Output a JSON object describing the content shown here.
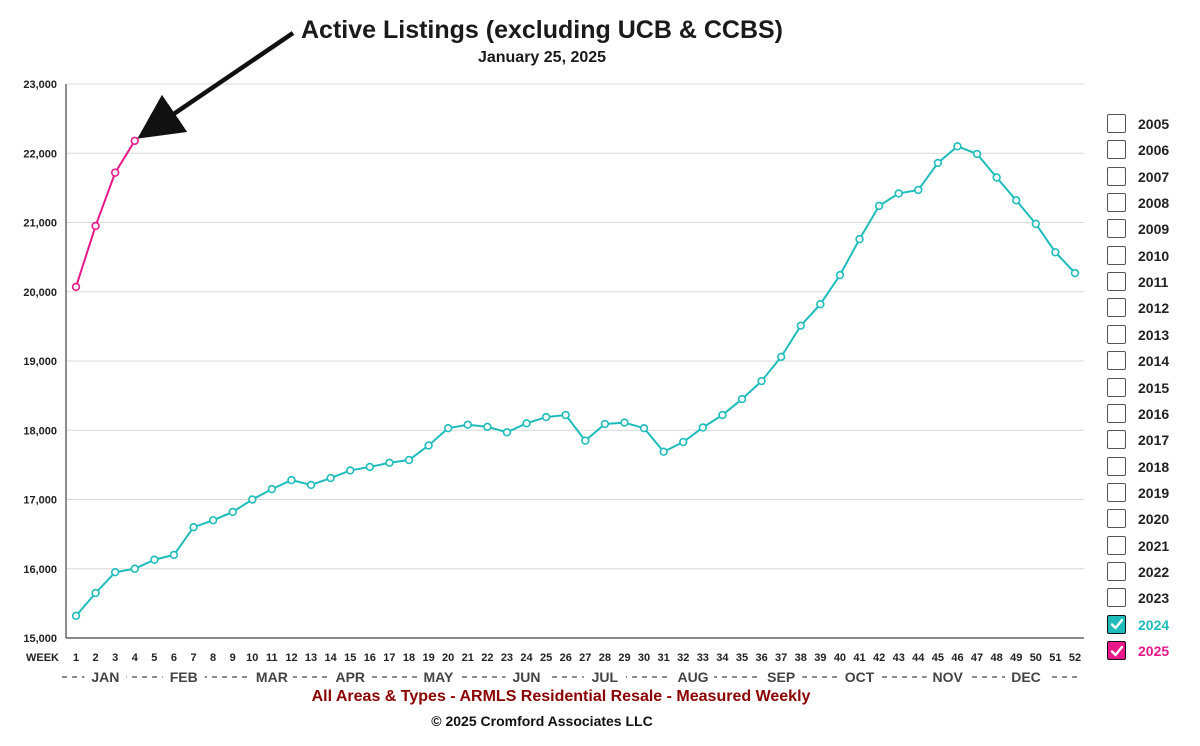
{
  "title": "Active Listings (excluding UCB & CCBS)",
  "subtitle": "January 25, 2025",
  "footer_subtitle": "All Areas & Types - ARMLS Residential Resale - Measured Weekly",
  "copyright": "© 2025 Cromford Associates LLC",
  "colors": {
    "s2024": "#1fbcbc",
    "s2025": "#e8178a",
    "grid": "#d8d8d8",
    "axis": "#444444"
  },
  "year_legend": [
    {
      "label": "2005",
      "checked": false
    },
    {
      "label": "2006",
      "checked": false
    },
    {
      "label": "2007",
      "checked": false
    },
    {
      "label": "2008",
      "checked": false
    },
    {
      "label": "2009",
      "checked": false
    },
    {
      "label": "2010",
      "checked": false
    },
    {
      "label": "2011",
      "checked": false
    },
    {
      "label": "2012",
      "checked": false
    },
    {
      "label": "2013",
      "checked": false
    },
    {
      "label": "2014",
      "checked": false
    },
    {
      "label": "2015",
      "checked": false
    },
    {
      "label": "2016",
      "checked": false
    },
    {
      "label": "2017",
      "checked": false
    },
    {
      "label": "2018",
      "checked": false
    },
    {
      "label": "2019",
      "checked": false
    },
    {
      "label": "2020",
      "checked": false
    },
    {
      "label": "2021",
      "checked": false
    },
    {
      "label": "2022",
      "checked": false
    },
    {
      "label": "2023",
      "checked": false
    },
    {
      "label": "2024",
      "checked": true,
      "color": "#1fbcbc"
    },
    {
      "label": "2025",
      "checked": true,
      "color": "#e8178a"
    }
  ],
  "chart_data": {
    "type": "line",
    "title": "Active Listings (excluding UCB & CCBS)",
    "subtitle": "January 25, 2025",
    "xlabel": "WEEK",
    "x": [
      1,
      2,
      3,
      4,
      5,
      6,
      7,
      8,
      9,
      10,
      11,
      12,
      13,
      14,
      15,
      16,
      17,
      18,
      19,
      20,
      21,
      22,
      23,
      24,
      25,
      26,
      27,
      28,
      29,
      30,
      31,
      32,
      33,
      34,
      35,
      36,
      37,
      38,
      39,
      40,
      41,
      42,
      43,
      44,
      45,
      46,
      47,
      48,
      49,
      50,
      51,
      52
    ],
    "xlim": [
      1,
      52
    ],
    "ylim": [
      15000,
      23000
    ],
    "yticks": [
      15000,
      16000,
      17000,
      18000,
      19000,
      20000,
      21000,
      22000,
      23000
    ],
    "ytick_labels": [
      "15,000",
      "16,000",
      "17,000",
      "18,000",
      "19,000",
      "20,000",
      "21,000",
      "22,000",
      "23,000"
    ],
    "grid": true,
    "month_labels": [
      {
        "label": "JAN",
        "week": 2.5
      },
      {
        "label": "FEB",
        "week": 6.5
      },
      {
        "label": "MAR",
        "week": 11
      },
      {
        "label": "APR",
        "week": 15
      },
      {
        "label": "MAY",
        "week": 19.5
      },
      {
        "label": "JUN",
        "week": 24
      },
      {
        "label": "JUL",
        "week": 28
      },
      {
        "label": "AUG",
        "week": 32.5
      },
      {
        "label": "SEP",
        "week": 37
      },
      {
        "label": "OCT",
        "week": 41
      },
      {
        "label": "NOV",
        "week": 45.5
      },
      {
        "label": "DEC",
        "week": 49.5
      }
    ],
    "series": [
      {
        "name": "2024",
        "color": "#1fbcbc",
        "x": [
          1,
          2,
          3,
          4,
          5,
          6,
          7,
          8,
          9,
          10,
          11,
          12,
          13,
          14,
          15,
          16,
          17,
          18,
          19,
          20,
          21,
          22,
          23,
          24,
          25,
          26,
          27,
          28,
          29,
          30,
          31,
          32,
          33,
          34,
          35,
          36,
          37,
          38,
          39,
          40,
          41,
          42,
          43,
          44,
          45,
          46,
          47,
          48,
          49,
          50,
          51,
          52
        ],
        "values": [
          15320,
          15650,
          15950,
          16000,
          16130,
          16200,
          16600,
          16700,
          16820,
          17000,
          17150,
          17280,
          17210,
          17310,
          17420,
          17470,
          17530,
          17570,
          17780,
          18030,
          18080,
          18050,
          17970,
          18100,
          18190,
          18220,
          17850,
          18090,
          18110,
          18030,
          17690,
          17830,
          18040,
          18220,
          18450,
          18710,
          19060,
          19510,
          19820,
          20240,
          20760,
          21240,
          21420,
          21470,
          21860,
          22100,
          21990,
          21650,
          21320,
          20980,
          20570,
          20270
        ]
      },
      {
        "name": "2025",
        "color": "#e8178a",
        "x": [
          1,
          2,
          3,
          4
        ],
        "values": [
          20070,
          20950,
          21720,
          22180
        ]
      }
    ]
  }
}
